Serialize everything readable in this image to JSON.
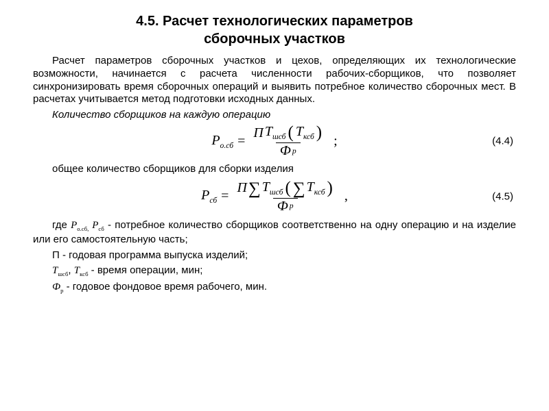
{
  "title_line1": "4.5. Расчет технологических  параметров",
  "title_line2": "сборочных участков",
  "para1": "Расчет параметров сборочных участков и цехов, определяющих их технологические возможности, начинается с расчета численности рабочих-сборщиков, что позволяет синхронизировать время сборочных операций и выявить потребное количество сборочных мест. В расчетах учитывается метод подготовки исходных данных.",
  "subhead": "Количество сборщиков на каждую операцию",
  "eq1": {
    "lhs_var": "P",
    "lhs_sub": "о.сб",
    "eq": " = ",
    "num_P": "П",
    "num_T1": "T",
    "num_T1_sub": "шсб",
    "num_T2": "T",
    "num_T2_sub": "ксб",
    "den_Phi": "Ф",
    "den_sub": "р",
    "punct": ";",
    "number": "(4.4)"
  },
  "line2": "общее количество сборщиков для сборки изделия",
  "eq2": {
    "lhs_var": "P",
    "lhs_sub": "сб",
    "eq": " = ",
    "num_P": "П",
    "sigma1": "∑",
    "num_T1": "T",
    "num_T1_sub": "шсб",
    "sigma2": "∑",
    "num_T2": "T",
    "num_T2_sub": "ксб",
    "den_Phi": "Ф",
    "den_sub": "р",
    "punct": ",",
    "number": "(4.5)"
  },
  "def_where_prefix": "где ",
  "def_where_sym1": "P",
  "def_where_sub1": "о.сб,",
  "def_where_sym2": " P",
  "def_where_sub2": "сб",
  "def_where_rest": " - потребное количество сборщиков соответственно на одну операцию и на изделие или его самостоятельную часть;",
  "def_P": "П - годовая программа выпуска изделий;",
  "def_T_sym1": "Т",
  "def_T_sub1": "шсб",
  "def_T_mid": ", ",
  "def_T_sym2": "Т",
  "def_T_sub2": "ксб",
  "def_T_rest": " - время операции, мин;",
  "def_Phi_sym": "Ф",
  "def_Phi_sub": "р",
  "def_Phi_rest": " - годовое фондовое время рабочего, мин.",
  "colors": {
    "bg": "#ffffff",
    "text": "#000000"
  }
}
